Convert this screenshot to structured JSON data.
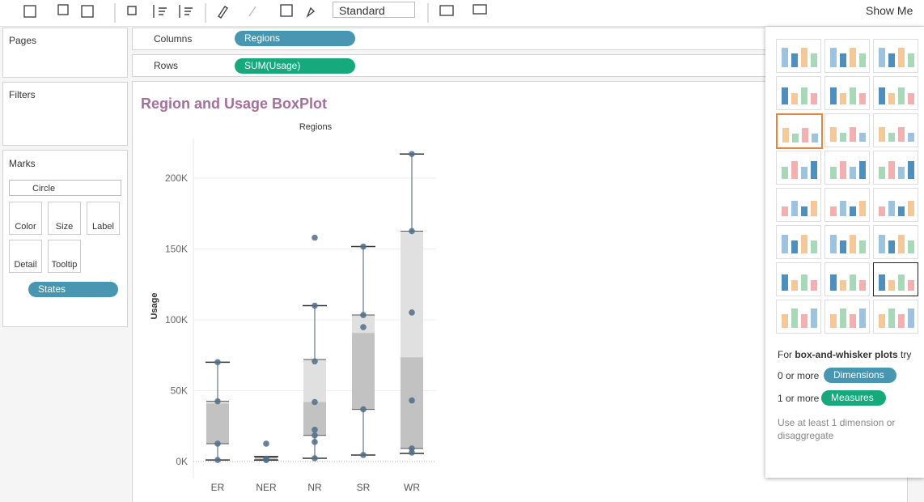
{
  "toolbar": {
    "fit": "Standard",
    "show_me": "Show Me"
  },
  "side": {
    "pages": "Pages",
    "filters": "Filters",
    "marks": "Marks",
    "mark_type": "Circle",
    "buttons": [
      "Color",
      "Size",
      "Label",
      "Detail",
      "Tooltip"
    ],
    "detail_field": "States"
  },
  "shelves": {
    "columns": "Columns",
    "columns_field": "Regions",
    "rows": "Rows",
    "rows_field": "SUM(Usage)"
  },
  "show_me": {
    "hint_pre": "For ",
    "hint_bold": "box-and-whisker plots",
    "hint_post": " try",
    "dim_pre": "0 or more",
    "dim": "Dimensions",
    "meas_pre": "1 or more",
    "meas": "Measures",
    "note": "Use at least 1 dimension or disaggregate"
  },
  "chart_data": {
    "type": "box",
    "title": "Region and Usage BoxPlot",
    "x_label": "Regions",
    "y_label": "Usage",
    "categories": [
      "ER",
      "NER",
      "NR",
      "SR",
      "WR"
    ],
    "boxes": [
      {
        "low": 1100,
        "q1": 12600,
        "median": 41000,
        "q3": 42500,
        "high": 70100
      },
      {
        "low": 1000,
        "q1": 1200,
        "median": 2000,
        "q3": 3000,
        "high": 3500
      },
      {
        "low": 2300,
        "q1": 18400,
        "median": 42000,
        "q3": 72000,
        "high": 110000
      },
      {
        "low": 4600,
        "q1": 36800,
        "median": 90800,
        "q3": 103400,
        "high": 151700
      },
      {
        "low": 5700,
        "q1": 9200,
        "median": 73600,
        "q3": 162600,
        "high": 217000
      }
    ],
    "points": [
      [
        70100,
        42500,
        12600,
        1100
      ],
      [
        12600,
        2000,
        1000
      ],
      [
        158000,
        110000,
        70700,
        42000,
        22400,
        18400,
        13800,
        2300
      ],
      [
        151700,
        103400,
        94800,
        36800,
        4600
      ],
      [
        217000,
        162600,
        105200,
        43100,
        9200,
        6300
      ]
    ],
    "point_color": "#4f6d8a",
    "box_upper_color": "#e0e0e0",
    "box_lower_color": "#c2c2c2",
    "ylim": [
      -12000,
      228000
    ],
    "yticks": [
      {
        "value": 0,
        "label": "0K"
      },
      {
        "value": 50000,
        "label": "50K"
      },
      {
        "value": 100000,
        "label": "100K"
      },
      {
        "value": 150000,
        "label": "150K"
      },
      {
        "value": 200000,
        "label": "200K"
      }
    ],
    "grid": true
  }
}
